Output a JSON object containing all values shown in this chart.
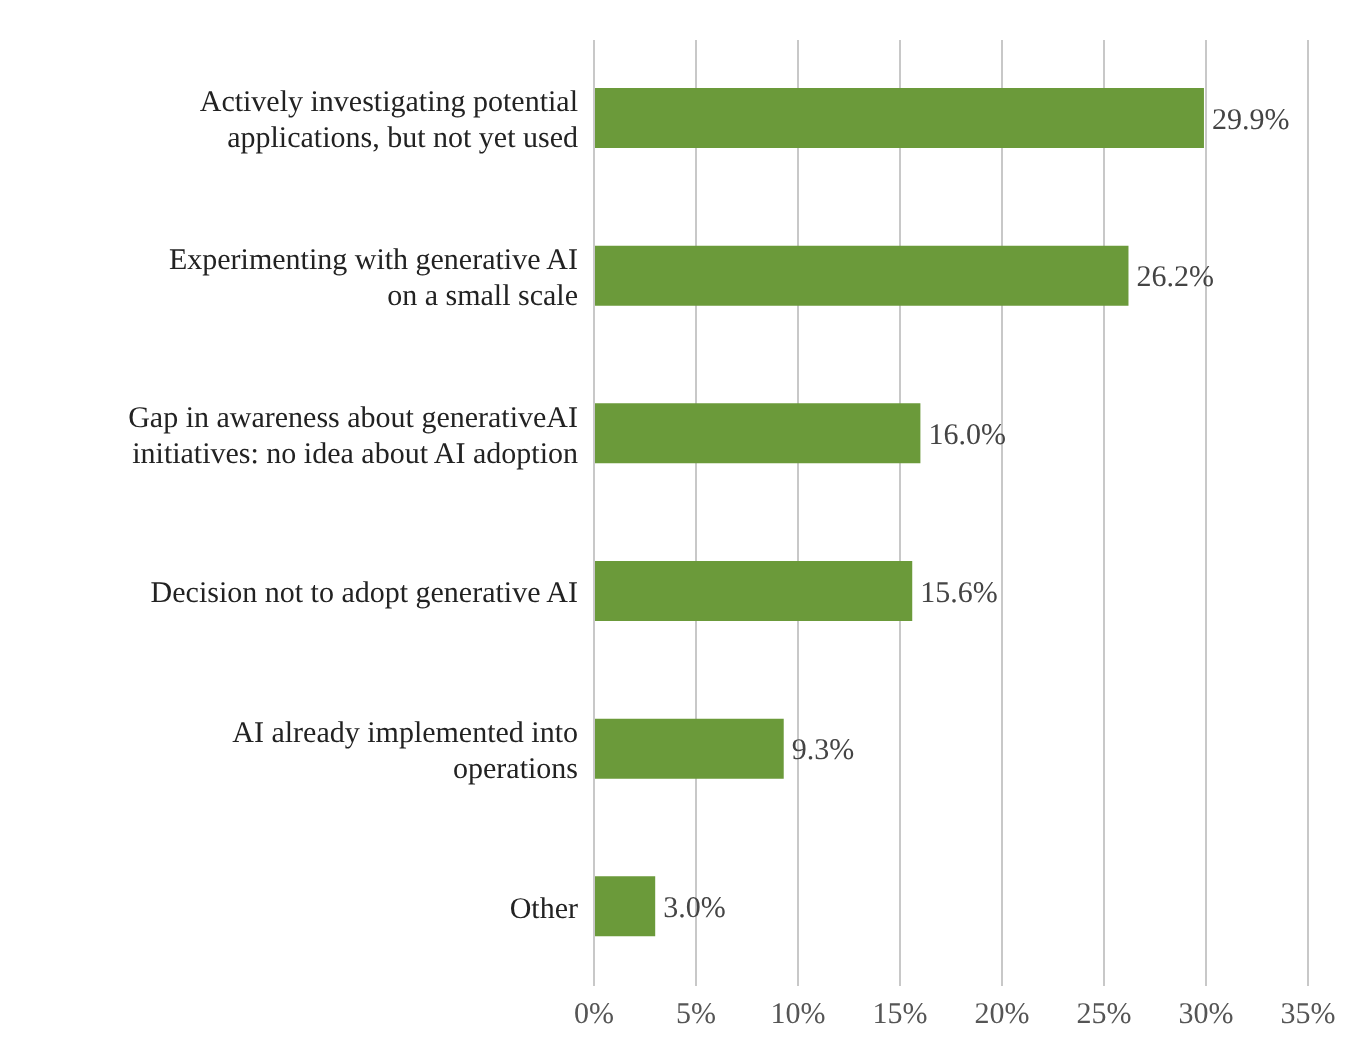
{
  "chart_data": {
    "type": "bar",
    "orientation": "horizontal",
    "categories": [
      "Actively investigating potential\napplications, but not yet used",
      "Experimenting with generative AI\non a small scale",
      "Gap in awareness about generativeAI\ninitiatives: no idea about AI adoption",
      "Decision not to adopt generative AI",
      "AI already implemented into\noperations",
      "Other"
    ],
    "values": [
      29.9,
      26.2,
      16.0,
      15.6,
      9.3,
      3.0
    ],
    "value_labels": [
      "29.9%",
      "26.2%",
      "16.0%",
      "15.6%",
      "9.3%",
      "3.0%"
    ],
    "color": "#6b9a3a",
    "xlim": [
      0,
      35
    ],
    "xticks": [
      {
        "value": 0,
        "label": "0%"
      },
      {
        "value": 5,
        "label": "5%"
      },
      {
        "value": 10,
        "label": "10%"
      },
      {
        "value": 15,
        "label": "15%"
      },
      {
        "value": 20,
        "label": "20%"
      },
      {
        "value": 25,
        "label": "25%"
      },
      {
        "value": 30,
        "label": "30%"
      },
      {
        "value": 35,
        "label": "35%"
      }
    ],
    "grid": "x"
  }
}
